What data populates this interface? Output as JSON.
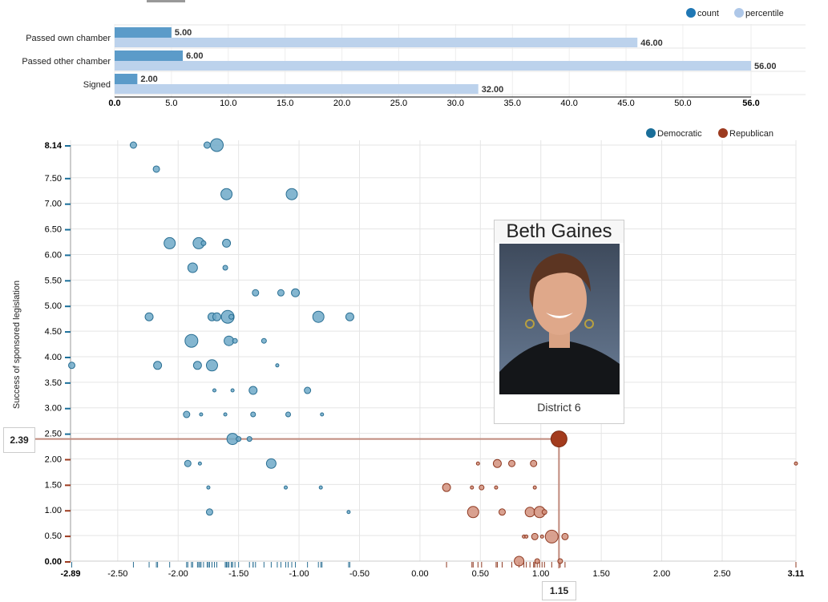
{
  "chart_data": [
    {
      "type": "bar",
      "orientation": "horizontal",
      "categories": [
        "Passed own chamber",
        "Passed other chamber",
        "Signed"
      ],
      "series": [
        {
          "name": "count",
          "color": "#5b9bc9",
          "values": [
            5.0,
            6.0,
            2.0
          ],
          "labels": [
            "5.00",
            "6.00",
            "2.00"
          ]
        },
        {
          "name": "percentile",
          "color": "#bcd2ec",
          "values": [
            46.0,
            56.0,
            32.0
          ],
          "labels": [
            "46.00",
            "56.00",
            "32.00"
          ]
        }
      ],
      "xlim": [
        0,
        56
      ],
      "xticks": [
        "0.0",
        "5.0",
        "10.0",
        "15.0",
        "20.0",
        "25.0",
        "30.0",
        "35.0",
        "40.0",
        "45.0",
        "50.0",
        "56.0"
      ],
      "legend": [
        "count",
        "percentile"
      ],
      "legend_colors": [
        "#1f77b4",
        "#aec7e8"
      ],
      "legend_position": "top-right"
    },
    {
      "type": "scatter",
      "ylabel": "Success of sponsored legislation",
      "xlim": [
        -2.89,
        3.11
      ],
      "ylim": [
        0,
        8.14
      ],
      "xticks": [
        "-2.89",
        "-2.50",
        "-2.00",
        "-1.50",
        "-1.00",
        "-0.50",
        "0.00",
        "0.50",
        "1.00",
        "1.50",
        "2.00",
        "2.50",
        "3.11"
      ],
      "yticks": [
        "0.00",
        "0.50",
        "1.00",
        "1.50",
        "2.00",
        "2.50",
        "3.00",
        "3.50",
        "4.00",
        "4.50",
        "5.00",
        "5.50",
        "6.00",
        "6.50",
        "7.00",
        "7.50",
        "8.14"
      ],
      "legend": [
        {
          "name": "Democratic",
          "color": "#1a6e99"
        },
        {
          "name": "Republican",
          "color": "#9c3a1f"
        }
      ],
      "legend_position": "top-right",
      "series": [
        {
          "name": "Democratic",
          "fill": "#6fa9c8",
          "stroke": "#2a6f93",
          "points": [
            [
              -2.37,
              8.14,
              4
            ],
            [
              -1.76,
              8.14,
              4
            ],
            [
              -1.68,
              8.14,
              8
            ],
            [
              -2.18,
              7.67,
              4
            ],
            [
              -1.6,
              7.18,
              7
            ],
            [
              -1.06,
              7.18,
              7
            ],
            [
              -2.07,
              6.22,
              7
            ],
            [
              -1.83,
              6.22,
              7
            ],
            [
              -1.79,
              6.22,
              3
            ],
            [
              -1.6,
              6.22,
              5
            ],
            [
              -1.88,
              5.74,
              6
            ],
            [
              -1.61,
              5.74,
              3
            ],
            [
              -1.36,
              5.25,
              4
            ],
            [
              -1.15,
              5.25,
              4
            ],
            [
              -1.03,
              5.25,
              5
            ],
            [
              -2.24,
              4.78,
              5
            ],
            [
              -1.72,
              4.78,
              5
            ],
            [
              -1.68,
              4.78,
              5
            ],
            [
              -1.59,
              4.78,
              8
            ],
            [
              -1.56,
              4.78,
              3
            ],
            [
              -0.84,
              4.78,
              7
            ],
            [
              -0.58,
              4.78,
              5
            ],
            [
              -1.89,
              4.31,
              8
            ],
            [
              -1.58,
              4.31,
              6
            ],
            [
              -1.53,
              4.31,
              3
            ],
            [
              -1.29,
              4.31,
              3
            ],
            [
              -2.88,
              3.83,
              4
            ],
            [
              -2.17,
              3.83,
              5
            ],
            [
              -1.84,
              3.83,
              5
            ],
            [
              -1.72,
              3.83,
              7
            ],
            [
              -1.18,
              3.83,
              2
            ],
            [
              -1.7,
              3.34,
              2
            ],
            [
              -1.55,
              3.34,
              2
            ],
            [
              -1.38,
              3.34,
              5
            ],
            [
              -0.93,
              3.34,
              4
            ],
            [
              -1.93,
              2.87,
              4
            ],
            [
              -1.81,
              2.87,
              2
            ],
            [
              -1.61,
              2.87,
              2
            ],
            [
              -1.38,
              2.87,
              3
            ],
            [
              -1.09,
              2.87,
              3
            ],
            [
              -0.81,
              2.87,
              2
            ],
            [
              -1.55,
              2.39,
              7
            ],
            [
              -1.5,
              2.39,
              3
            ],
            [
              -1.41,
              2.39,
              3
            ],
            [
              -1.92,
              1.91,
              4
            ],
            [
              -1.82,
              1.91,
              2
            ],
            [
              -1.23,
              1.91,
              6
            ],
            [
              -1.75,
              1.44,
              2
            ],
            [
              -1.11,
              1.44,
              2
            ],
            [
              -0.82,
              1.44,
              2
            ],
            [
              -1.74,
              0.96,
              4
            ],
            [
              -0.59,
              0.96,
              2
            ]
          ]
        },
        {
          "name": "Republican",
          "fill": "#d2907c",
          "stroke": "#8f3a22",
          "points": [
            [
              0.48,
              1.91,
              2
            ],
            [
              0.64,
              1.91,
              5
            ],
            [
              0.76,
              1.91,
              4
            ],
            [
              0.94,
              1.91,
              4
            ],
            [
              3.11,
              1.91,
              2
            ],
            [
              0.22,
              1.44,
              5
            ],
            [
              0.43,
              1.44,
              2
            ],
            [
              0.51,
              1.44,
              3
            ],
            [
              0.63,
              1.44,
              2
            ],
            [
              0.95,
              1.44,
              2
            ],
            [
              0.44,
              0.96,
              7
            ],
            [
              0.68,
              0.96,
              4
            ],
            [
              0.91,
              0.96,
              6
            ],
            [
              0.99,
              0.96,
              7
            ],
            [
              1.03,
              0.96,
              3
            ],
            [
              0.86,
              0.48,
              2
            ],
            [
              0.88,
              0.48,
              2
            ],
            [
              0.95,
              0.48,
              4
            ],
            [
              1.01,
              0.48,
              2
            ],
            [
              1.09,
              0.48,
              8
            ],
            [
              1.2,
              0.48,
              4
            ],
            [
              0.82,
              0.0,
              6
            ],
            [
              0.97,
              0.0,
              3
            ],
            [
              1.16,
              0.0,
              3
            ]
          ]
        }
      ],
      "highlight": {
        "x": 1.15,
        "y": 2.39,
        "x_label": "1.15",
        "y_label": "2.39",
        "party": "Republican",
        "color": "#a33b1d"
      }
    }
  ],
  "tooltip": {
    "name": "Beth Gaines",
    "district": "District 6"
  }
}
